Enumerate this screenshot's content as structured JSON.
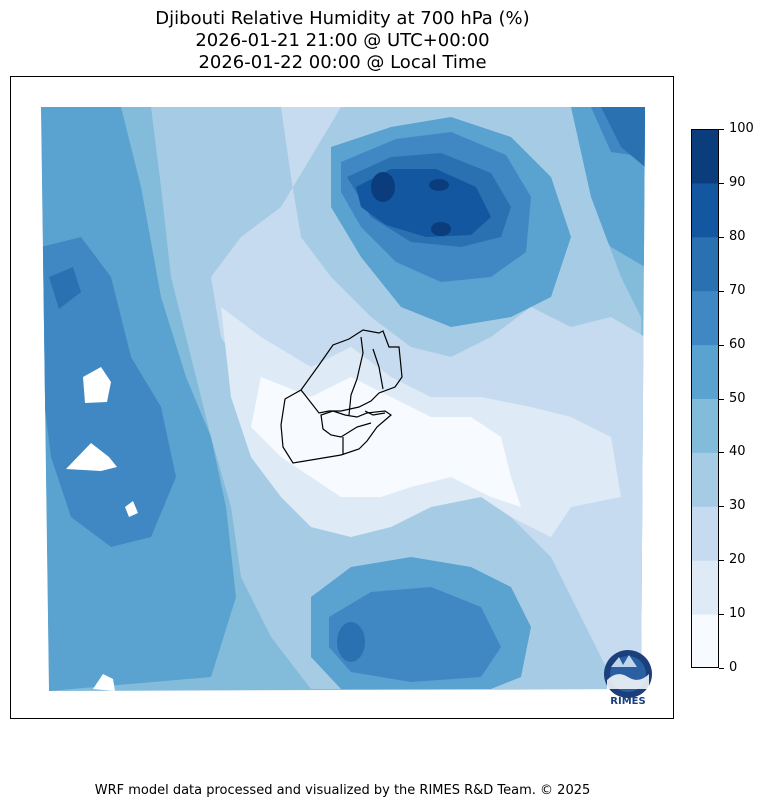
{
  "title": {
    "line1": "Djibouti Relative Humidity at 700 hPa (%)",
    "line2": "2026-01-21 21:00 @ UTC+00:00",
    "line3": "2026-01-22 00:00 @ Local Time"
  },
  "colorbar": {
    "levels": [
      0,
      10,
      20,
      30,
      40,
      50,
      60,
      70,
      80,
      90,
      100
    ],
    "tick_labels": [
      "0",
      "10",
      "20",
      "30",
      "40",
      "50",
      "60",
      "70",
      "80",
      "90",
      "100"
    ],
    "colors": [
      "#f7fbff",
      "#deebf7",
      "#c6dbef",
      "#a5cce4",
      "#83bbdb",
      "#5aa2d0",
      "#3f88c3",
      "#2a71b2",
      "#1257a0",
      "#0b3d7c"
    ]
  },
  "logo": {
    "text": "RIMES"
  },
  "footer": "WRF model data processed and visualized by the RIMES R&D Team. © 2025"
}
